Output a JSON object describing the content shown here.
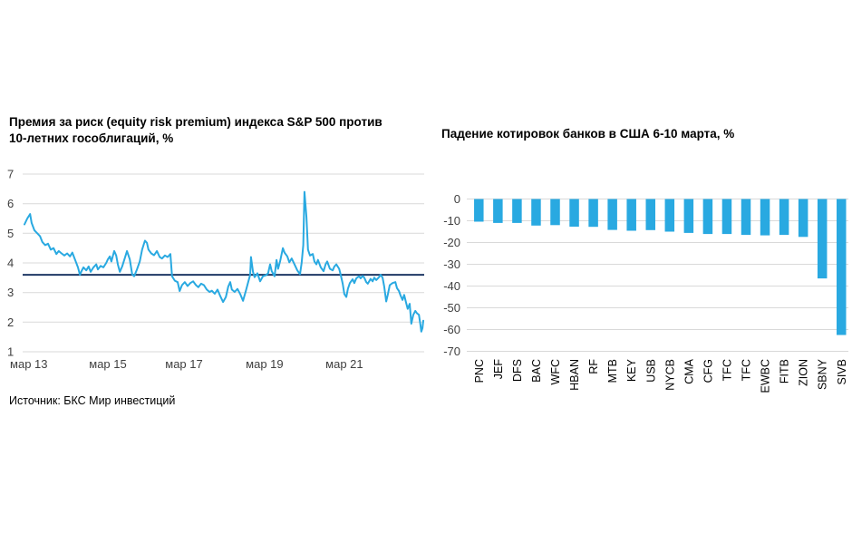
{
  "source_note": "Источник: БКС Мир инвестиций",
  "chart_data": [
    {
      "type": "line",
      "title": "Премия за риск (equity risk premium) индекса S&P 500 против 10-летних гособлигаций, %",
      "ylim": [
        1,
        7
      ],
      "yticks": [
        7,
        6,
        5,
        4,
        3,
        2,
        1
      ],
      "x_tick_labels": [
        "мар 13",
        "мар 15",
        "мар 17",
        "мар 19",
        "мар 21"
      ],
      "x_tick_pos": [
        0.011,
        0.209,
        0.4,
        0.602,
        0.802
      ],
      "x_range_note": "weekly series from мар 13 to мар 23, x given as 0–1 fraction of timeline",
      "average_line": 3.6,
      "grid": "on",
      "colors": {
        "series": "#29A9E1",
        "average": "#1F3864",
        "grid": "#D9D9D9",
        "tick_text": "#404040"
      },
      "series": [
        {
          "name": "equity risk premium",
          "points": [
            [
              0,
              5.3
            ],
            [
              0.007,
              5.5
            ],
            [
              0.014,
              5.65
            ],
            [
              0.018,
              5.35
            ],
            [
              0.025,
              5.1
            ],
            [
              0.032,
              5.0
            ],
            [
              0.039,
              4.9
            ],
            [
              0.045,
              4.7
            ],
            [
              0.052,
              4.6
            ],
            [
              0.059,
              4.65
            ],
            [
              0.066,
              4.45
            ],
            [
              0.073,
              4.5
            ],
            [
              0.08,
              4.3
            ],
            [
              0.086,
              4.4
            ],
            [
              0.093,
              4.32
            ],
            [
              0.1,
              4.25
            ],
            [
              0.107,
              4.32
            ],
            [
              0.114,
              4.22
            ],
            [
              0.12,
              4.35
            ],
            [
              0.127,
              4.1
            ],
            [
              0.134,
              3.85
            ],
            [
              0.139,
              3.6
            ],
            [
              0.143,
              3.72
            ],
            [
              0.148,
              3.85
            ],
            [
              0.155,
              3.75
            ],
            [
              0.161,
              3.88
            ],
            [
              0.166,
              3.7
            ],
            [
              0.173,
              3.85
            ],
            [
              0.18,
              3.95
            ],
            [
              0.184,
              3.78
            ],
            [
              0.191,
              3.9
            ],
            [
              0.198,
              3.85
            ],
            [
              0.205,
              4.0
            ],
            [
              0.209,
              4.12
            ],
            [
              0.214,
              4.22
            ],
            [
              0.218,
              4.05
            ],
            [
              0.225,
              4.4
            ],
            [
              0.23,
              4.25
            ],
            [
              0.234,
              3.95
            ],
            [
              0.239,
              3.7
            ],
            [
              0.245,
              3.88
            ],
            [
              0.252,
              4.18
            ],
            [
              0.257,
              4.4
            ],
            [
              0.264,
              4.12
            ],
            [
              0.27,
              3.62
            ],
            [
              0.275,
              3.55
            ],
            [
              0.282,
              3.78
            ],
            [
              0.289,
              4.05
            ],
            [
              0.295,
              4.45
            ],
            [
              0.302,
              4.75
            ],
            [
              0.307,
              4.68
            ],
            [
              0.311,
              4.45
            ],
            [
              0.318,
              4.32
            ],
            [
              0.325,
              4.26
            ],
            [
              0.332,
              4.4
            ],
            [
              0.339,
              4.2
            ],
            [
              0.345,
              4.15
            ],
            [
              0.352,
              4.25
            ],
            [
              0.359,
              4.2
            ],
            [
              0.366,
              4.3
            ],
            [
              0.37,
              3.55
            ],
            [
              0.377,
              3.4
            ],
            [
              0.384,
              3.35
            ],
            [
              0.389,
              3.05
            ],
            [
              0.395,
              3.25
            ],
            [
              0.402,
              3.35
            ],
            [
              0.409,
              3.22
            ],
            [
              0.416,
              3.32
            ],
            [
              0.423,
              3.38
            ],
            [
              0.43,
              3.25
            ],
            [
              0.436,
              3.18
            ],
            [
              0.443,
              3.3
            ],
            [
              0.45,
              3.25
            ],
            [
              0.457,
              3.1
            ],
            [
              0.464,
              3.02
            ],
            [
              0.47,
              3.06
            ],
            [
              0.477,
              2.96
            ],
            [
              0.484,
              3.1
            ],
            [
              0.491,
              2.88
            ],
            [
              0.498,
              2.68
            ],
            [
              0.505,
              2.85
            ],
            [
              0.511,
              3.2
            ],
            [
              0.516,
              3.35
            ],
            [
              0.52,
              3.1
            ],
            [
              0.527,
              3.02
            ],
            [
              0.534,
              3.12
            ],
            [
              0.541,
              2.95
            ],
            [
              0.548,
              2.72
            ],
            [
              0.555,
              3.05
            ],
            [
              0.561,
              3.35
            ],
            [
              0.566,
              3.6
            ],
            [
              0.568,
              4.2
            ],
            [
              0.573,
              3.7
            ],
            [
              0.577,
              3.52
            ],
            [
              0.584,
              3.65
            ],
            [
              0.591,
              3.38
            ],
            [
              0.598,
              3.55
            ],
            [
              0.605,
              3.58
            ],
            [
              0.611,
              3.65
            ],
            [
              0.616,
              3.95
            ],
            [
              0.62,
              3.72
            ],
            [
              0.627,
              3.55
            ],
            [
              0.632,
              4.1
            ],
            [
              0.636,
              3.8
            ],
            [
              0.641,
              4.05
            ],
            [
              0.648,
              4.5
            ],
            [
              0.652,
              4.35
            ],
            [
              0.659,
              4.22
            ],
            [
              0.664,
              4.02
            ],
            [
              0.67,
              4.15
            ],
            [
              0.677,
              3.95
            ],
            [
              0.684,
              3.75
            ],
            [
              0.691,
              3.62
            ],
            [
              0.695,
              4.0
            ],
            [
              0.699,
              4.6
            ],
            [
              0.702,
              6.4
            ],
            [
              0.707,
              5.55
            ],
            [
              0.711,
              4.45
            ],
            [
              0.716,
              4.25
            ],
            [
              0.723,
              4.3
            ],
            [
              0.727,
              4.05
            ],
            [
              0.732,
              3.95
            ],
            [
              0.736,
              4.1
            ],
            [
              0.743,
              3.85
            ],
            [
              0.75,
              3.72
            ],
            [
              0.755,
              3.95
            ],
            [
              0.759,
              4.05
            ],
            [
              0.766,
              3.8
            ],
            [
              0.773,
              3.75
            ],
            [
              0.777,
              3.88
            ],
            [
              0.782,
              3.95
            ],
            [
              0.789,
              3.8
            ],
            [
              0.793,
              3.6
            ],
            [
              0.798,
              3.3
            ],
            [
              0.802,
              2.95
            ],
            [
              0.807,
              2.85
            ],
            [
              0.811,
              3.12
            ],
            [
              0.816,
              3.32
            ],
            [
              0.823,
              3.45
            ],
            [
              0.827,
              3.32
            ],
            [
              0.832,
              3.48
            ],
            [
              0.839,
              3.55
            ],
            [
              0.843,
              3.48
            ],
            [
              0.848,
              3.56
            ],
            [
              0.852,
              3.5
            ],
            [
              0.857,
              3.35
            ],
            [
              0.861,
              3.3
            ],
            [
              0.868,
              3.46
            ],
            [
              0.873,
              3.38
            ],
            [
              0.877,
              3.5
            ],
            [
              0.882,
              3.42
            ],
            [
              0.889,
              3.52
            ],
            [
              0.893,
              3.6
            ],
            [
              0.898,
              3.5
            ],
            [
              0.902,
              3.2
            ],
            [
              0.907,
              2.7
            ],
            [
              0.911,
              2.92
            ],
            [
              0.916,
              3.25
            ],
            [
              0.923,
              3.32
            ],
            [
              0.93,
              3.35
            ],
            [
              0.934,
              3.15
            ],
            [
              0.939,
              3.05
            ],
            [
              0.943,
              2.9
            ],
            [
              0.948,
              2.75
            ],
            [
              0.952,
              2.92
            ],
            [
              0.957,
              2.65
            ],
            [
              0.961,
              2.45
            ],
            [
              0.966,
              2.62
            ],
            [
              0.97,
              1.95
            ],
            [
              0.975,
              2.25
            ],
            [
              0.98,
              2.38
            ],
            [
              0.984,
              2.3
            ],
            [
              0.989,
              2.25
            ],
            [
              0.993,
              1.9
            ],
            [
              0.995,
              1.68
            ],
            [
              0.998,
              1.8
            ],
            [
              1,
              2.05
            ]
          ]
        }
      ]
    },
    {
      "type": "bar",
      "title": "Падение котировок банков в США 6-10 марта, %",
      "categories": [
        "PNC",
        "JEF",
        "DFS",
        "BAC",
        "WFC",
        "HBAN",
        "RF",
        "MTB",
        "KEY",
        "USB",
        "NYCB",
        "CMA",
        "CFG",
        "TFC",
        "TFC",
        "EWBC",
        "FITB",
        "ZION",
        "SBNY",
        "SIVB"
      ],
      "values": [
        -10.4,
        -11,
        -11,
        -12.2,
        -12,
        -12.7,
        -12.8,
        -14.2,
        -14.6,
        -14.3,
        -15,
        -15.6,
        -16.1,
        -16.1,
        -16.5,
        -16.7,
        -16.5,
        -17.4,
        -36.5,
        -62.5
      ],
      "ylim": [
        -70,
        0
      ],
      "yticks": [
        0,
        -10,
        -20,
        -30,
        -40,
        -50,
        -60,
        -70
      ],
      "grid": "on",
      "colors": {
        "bar": "#29A9E1",
        "grid": "#D9D9D9",
        "tick_text": "#404040",
        "category_text": "#000000"
      }
    }
  ]
}
